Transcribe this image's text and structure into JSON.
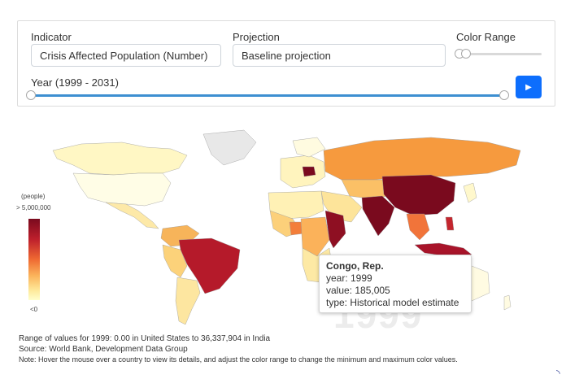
{
  "controls": {
    "indicator_label": "Indicator",
    "indicator_value": "Crisis Affected Population (Number)",
    "projection_label": "Projection",
    "projection_value": "Baseline projection",
    "color_range_label": "Color Range",
    "year_label": "Year (1999 - 2031)",
    "play_icon": "play-icon",
    "play_glyph": "▶",
    "year_fraction": 1.0
  },
  "legend": {
    "unit": "(people)",
    "max": "> 5,000,000",
    "min": "<0"
  },
  "tooltip": {
    "country": "Congo, Rep.",
    "year": "year: 1999",
    "value": "value: 185,005",
    "type": "type: Historical model estimate"
  },
  "watermark_year": "1999",
  "notes": {
    "range": "Range of values for 1999: 0.00 in United States to 36,337,904 in India",
    "source": "Source: World Bank, Development Data Group",
    "note": "Note: Hover the mouse over a country to view its details, and adjust the color range to change the minimum and maximum color values."
  },
  "colors": {
    "accent": "#0d6efd",
    "slider": "#3d8fd1",
    "scale_high": "#7a0a1e",
    "scale_low": "#ffffcc"
  }
}
